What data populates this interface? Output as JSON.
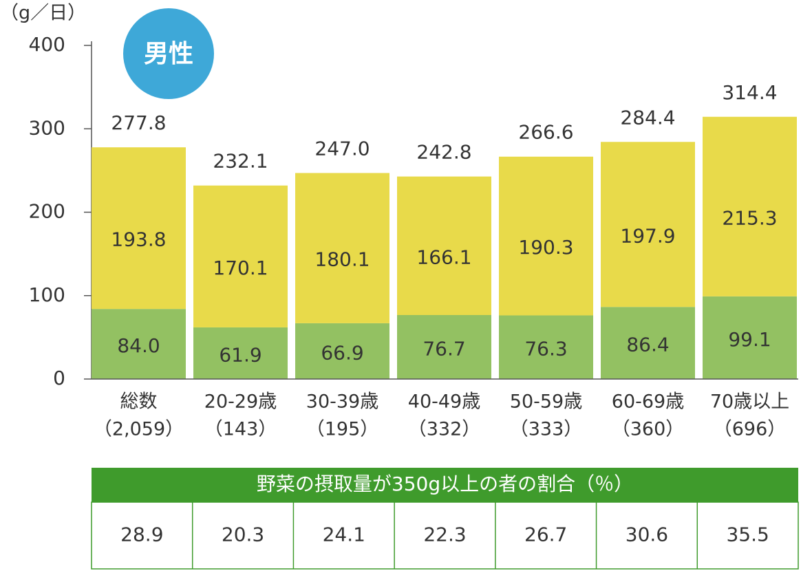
{
  "chart_data": {
    "type": "stacked-bar",
    "badge": "男性",
    "y_label": "（g／日）",
    "categories": [
      [
        "総数",
        "（2,059）"
      ],
      [
        "20-29歳",
        "（143）"
      ],
      [
        "30-39歳",
        "（195）"
      ],
      [
        "40-49歳",
        "（332）"
      ],
      [
        "50-59歳",
        "（333）"
      ],
      [
        "60-69歳",
        "（360）"
      ],
      [
        "70歳以上",
        "（696）"
      ]
    ],
    "series": [
      {
        "color": "#93c162",
        "values": [
          84.0,
          61.9,
          66.9,
          76.7,
          76.3,
          86.4,
          99.1
        ],
        "value_labels": [
          "84.0",
          "61.9",
          "66.9",
          "76.7",
          "76.3",
          "86.4",
          "99.1"
        ]
      },
      {
        "color": "#e8da4a",
        "values": [
          193.8,
          170.1,
          180.1,
          166.1,
          190.3,
          197.9,
          215.3
        ],
        "value_labels": [
          "193.8",
          "170.1",
          "180.1",
          "166.1",
          "190.3",
          "197.9",
          "215.3"
        ]
      }
    ],
    "totals": {
      "values": [
        277.8,
        232.1,
        247.0,
        242.8,
        266.6,
        284.4,
        314.4
      ],
      "value_labels": [
        "277.8",
        "232.1",
        "247.0",
        "242.8",
        "266.6",
        "284.4",
        "314.4"
      ]
    },
    "ylim": [
      0,
      400
    ],
    "yticks": [
      0,
      100,
      200,
      300,
      400
    ],
    "table": {
      "title": "野菜の摂取量が350g以上の者の割合（％）",
      "header_color": "#3f9b2c",
      "values": [
        28.9,
        20.3,
        24.1,
        22.3,
        26.7,
        30.6,
        35.5
      ]
    }
  }
}
